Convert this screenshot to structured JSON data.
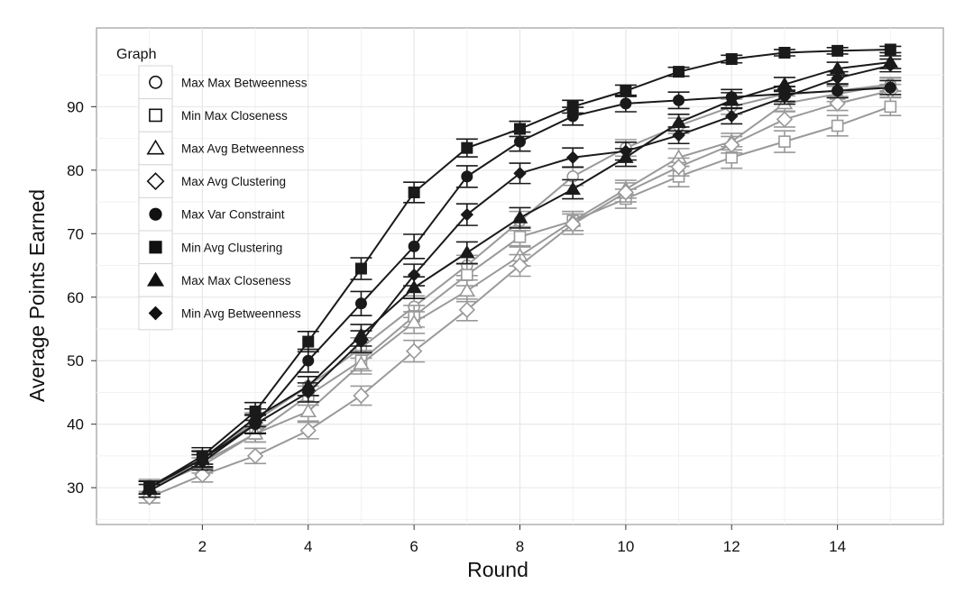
{
  "chart_data": {
    "type": "line",
    "title": "",
    "xlabel": "Round",
    "ylabel": "Average Points Earned",
    "xlim": [
      0.0,
      16.0
    ],
    "ylim": [
      24.2,
      102.4
    ],
    "x_ticks": [
      2,
      4,
      6,
      8,
      10,
      12,
      14
    ],
    "y_ticks": [
      30,
      40,
      50,
      60,
      70,
      80,
      90
    ],
    "grid": true,
    "legend_title": "Graph",
    "legend_position": "top-left",
    "x": [
      1,
      2,
      3,
      4,
      5,
      6,
      7,
      8,
      9,
      10,
      11,
      12,
      13,
      14,
      15
    ],
    "series": [
      {
        "name": "Max Max Betweenness",
        "marker": "circle-open",
        "color": "#999999",
        "values": [
          30.3,
          34.5,
          40.5,
          46.0,
          52.0,
          58.5,
          65.0,
          72.0,
          79.0,
          83.5,
          87.0,
          90.0,
          92.0,
          92.5,
          93.5
        ],
        "errors": [
          1.0,
          1.2,
          1.3,
          1.5,
          1.6,
          1.7,
          1.6,
          1.5,
          1.4,
          1.3,
          1.2,
          1.2,
          1.1,
          1.1,
          1.0
        ]
      },
      {
        "name": "Min Max Closeness",
        "marker": "square-open",
        "color": "#999999",
        "values": [
          30.0,
          33.5,
          38.5,
          44.5,
          50.0,
          57.0,
          63.5,
          69.5,
          72.0,
          75.5,
          79.0,
          82.0,
          84.5,
          87.0,
          90.0
        ],
        "errors": [
          1.0,
          1.2,
          1.3,
          1.5,
          1.6,
          1.7,
          1.7,
          1.6,
          1.5,
          1.5,
          1.6,
          1.7,
          1.7,
          1.6,
          1.4
        ]
      },
      {
        "name": "Max Avg Betweenness",
        "marker": "triangle-open",
        "color": "#999999",
        "values": [
          30.0,
          34.0,
          38.5,
          42.0,
          49.5,
          56.0,
          61.0,
          66.5,
          72.0,
          77.0,
          82.0,
          84.5,
          90.5,
          92.0,
          93.5
        ],
        "errors": [
          1.0,
          1.2,
          1.3,
          1.5,
          1.6,
          1.7,
          1.7,
          1.6,
          1.5,
          1.4,
          1.4,
          1.3,
          1.2,
          1.2,
          1.1
        ]
      },
      {
        "name": "Max Avg Clustering",
        "marker": "diamond-open",
        "color": "#999999",
        "values": [
          28.5,
          32.0,
          35.0,
          39.0,
          44.5,
          51.5,
          58.0,
          65.0,
          71.5,
          76.5,
          80.5,
          84.0,
          88.0,
          90.5,
          92.5
        ],
        "errors": [
          0.9,
          1.1,
          1.2,
          1.3,
          1.5,
          1.7,
          1.7,
          1.7,
          1.6,
          1.5,
          1.4,
          1.3,
          1.2,
          1.1,
          1.0
        ]
      },
      {
        "name": "Max Var Constraint",
        "marker": "circle-filled",
        "color": "#1a1a1a",
        "values": [
          30.0,
          34.5,
          40.0,
          50.0,
          59.0,
          68.0,
          79.0,
          84.5,
          88.5,
          90.5,
          91.0,
          91.5,
          92.0,
          92.5,
          93.0
        ],
        "errors": [
          1.0,
          1.3,
          1.5,
          1.8,
          1.9,
          1.9,
          1.7,
          1.5,
          1.4,
          1.3,
          1.3,
          1.2,
          1.2,
          1.1,
          1.1
        ]
      },
      {
        "name": "Min Avg Clustering",
        "marker": "square-filled",
        "color": "#1a1a1a",
        "values": [
          30.0,
          35.0,
          42.0,
          53.0,
          64.5,
          76.5,
          83.5,
          86.5,
          90.0,
          92.5,
          95.5,
          97.5,
          98.5,
          98.8,
          99.0
        ],
        "errors": [
          1.0,
          1.3,
          1.4,
          1.6,
          1.7,
          1.6,
          1.4,
          1.2,
          1.0,
          0.9,
          0.7,
          0.6,
          0.5,
          0.5,
          0.5
        ]
      },
      {
        "name": "Max Max Closeness",
        "marker": "triangle-filled",
        "color": "#1a1a1a",
        "values": [
          30.0,
          34.5,
          41.0,
          46.0,
          54.0,
          61.5,
          67.0,
          72.5,
          77.0,
          82.0,
          87.5,
          91.0,
          93.5,
          96.0,
          97.0
        ],
        "errors": [
          1.0,
          1.2,
          1.4,
          1.5,
          1.7,
          1.7,
          1.7,
          1.6,
          1.5,
          1.4,
          1.3,
          1.2,
          1.1,
          1.0,
          1.0
        ]
      },
      {
        "name": "Min Avg Betweenness",
        "marker": "diamond-filled",
        "color": "#1a1a1a",
        "values": [
          29.5,
          34.0,
          40.0,
          45.0,
          53.0,
          63.5,
          73.0,
          79.5,
          82.0,
          83.0,
          85.5,
          88.5,
          91.5,
          94.5,
          96.5
        ],
        "errors": [
          1.0,
          1.2,
          1.4,
          1.5,
          1.7,
          1.7,
          1.7,
          1.6,
          1.5,
          1.4,
          1.3,
          1.2,
          1.1,
          1.0,
          1.0
        ]
      }
    ]
  }
}
